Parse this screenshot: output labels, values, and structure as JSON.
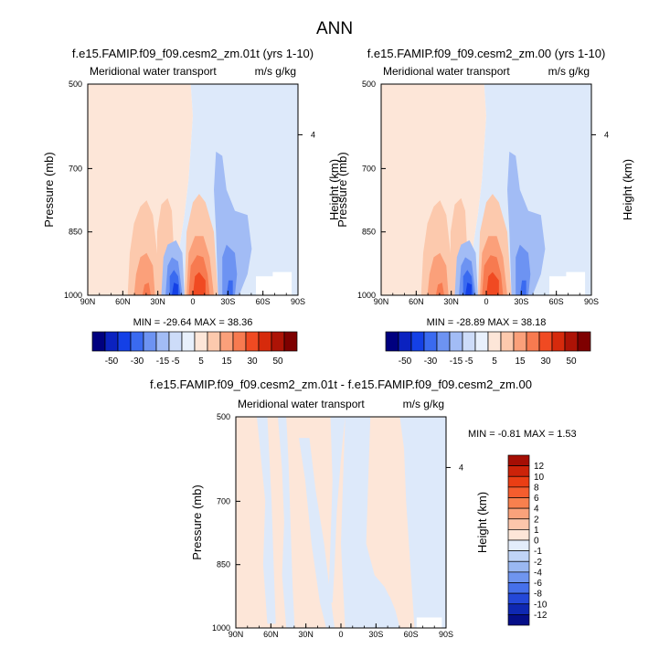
{
  "page_title": "ANN",
  "chart_data": [
    {
      "type": "heatmap",
      "title": "f.e15.FAMIP.f09_f09.cesm2_zm.01t (yrs 1-10)",
      "left_subtitle": "Meridional water transport",
      "right_subtitle": "m/s g/kg",
      "ylabel": "Pressure (mb)",
      "right_ylabel": "Height (km)",
      "yticks": [
        "500",
        "700",
        "850",
        "1000"
      ],
      "right_yticks": [
        "4"
      ],
      "xticks": [
        "90N",
        "60N",
        "30N",
        "0",
        "30S",
        "60S",
        "90S"
      ],
      "min": -29.64,
      "max": 38.36,
      "stats_text": "MIN = -29.64  MAX =  38.36"
    },
    {
      "type": "heatmap",
      "title": "f.e15.FAMIP.f09_f09.cesm2_zm.00 (yrs 1-10)",
      "left_subtitle": "Meridional water transport",
      "right_subtitle": "m/s g/kg",
      "ylabel": "Pressure (mb)",
      "right_ylabel": "Height (km)",
      "yticks": [
        "500",
        "700",
        "850",
        "1000"
      ],
      "right_yticks": [
        "4"
      ],
      "xticks": [
        "90N",
        "60N",
        "30N",
        "0",
        "30S",
        "60S",
        "90S"
      ],
      "min": -28.89,
      "max": 38.18,
      "stats_text": "MIN = -28.89  MAX =  38.18"
    },
    {
      "type": "heatmap",
      "title": "f.e15.FAMIP.f09_f09.cesm2_zm.01t - f.e15.FAMIP.f09_f09.cesm2_zm.00",
      "left_subtitle": "Meridional water transport",
      "right_subtitle": "m/s g/kg",
      "ylabel": "Pressure (mb)",
      "right_ylabel": "Height (km)",
      "yticks": [
        "500",
        "700",
        "850",
        "1000"
      ],
      "right_yticks": [
        "4"
      ],
      "xticks": [
        "90N",
        "60N",
        "30N",
        "0",
        "30S",
        "60S",
        "90S"
      ],
      "min": -0.81,
      "max": 1.53,
      "stats_text": "MIN =  -0.81  MAX =   1.53"
    }
  ],
  "colorbars": {
    "top": {
      "labels": [
        "-50",
        "-30",
        "-15",
        "-5",
        "5",
        "15",
        "30",
        "50"
      ],
      "colors": [
        "#00007f",
        "#0b22c0",
        "#1440e6",
        "#3a6af0",
        "#6d93f2",
        "#a2bcf5",
        "#cddcf9",
        "#e8f0fc",
        "#fde6d8",
        "#fcc9ad",
        "#fba07a",
        "#f77a50",
        "#f04a22",
        "#d62a0c",
        "#ad1306",
        "#7e0000"
      ]
    },
    "bottom": {
      "labels": [
        "12",
        "10",
        "8",
        "6",
        "4",
        "2",
        "1",
        "0",
        "-1",
        "-2",
        "-4",
        "-6",
        "-8",
        "-10",
        "-12"
      ],
      "colors": [
        "#a50e04",
        "#cc2309",
        "#ea3e14",
        "#f55d2e",
        "#f8804e",
        "#faa27b",
        "#fcc6ab",
        "#fde6d8",
        "#e3edfb",
        "#c0d4f7",
        "#9ab8f2",
        "#6f95ef",
        "#4670ea",
        "#2448d8",
        "#0f28b2",
        "#050e88"
      ]
    }
  },
  "colors": {
    "light_red": "#fde6d8",
    "light_blue": "#dde9fa",
    "blue1": "#a2bcf5",
    "blue2": "#6d93f2",
    "blue3": "#3a6af0",
    "blue4": "#1440e6",
    "red1": "#fcc9ad",
    "red2": "#fba07a",
    "red3": "#f77a50",
    "red4": "#f04a22"
  }
}
